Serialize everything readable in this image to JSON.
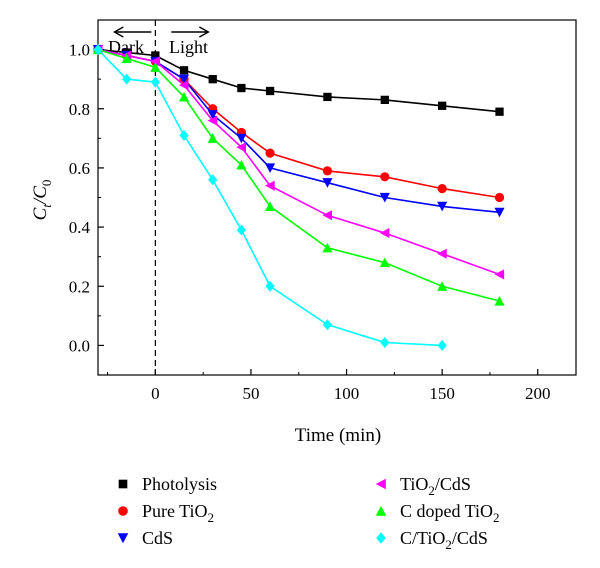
{
  "chart_data": {
    "type": "line",
    "xlabel": "Time (min)",
    "ylabel": {
      "main": "C",
      "sub1": "t",
      "sep": "/C",
      "sub2": "0"
    },
    "xlim": [
      -30,
      220
    ],
    "ylim": [
      -0.1,
      1.1
    ],
    "xticks": [
      0,
      50,
      100,
      150,
      200
    ],
    "yticks": [
      0.0,
      0.2,
      0.4,
      0.6,
      0.8,
      1.0
    ],
    "xtick_labels": [
      "0",
      "50",
      "100",
      "150",
      "200"
    ],
    "ytick_labels": [
      "0.0",
      "0.2",
      "0.4",
      "0.6",
      "0.8",
      "1.0"
    ],
    "grid": false,
    "legend_position": "below",
    "annotations": {
      "dark_label": "Dark",
      "light_label": "Light",
      "divider_x": 0
    },
    "series": [
      {
        "name": "Photolysis",
        "legend_parts": [
          {
            "t": "Photolysis"
          }
        ],
        "color": "#000000",
        "marker": "square",
        "x": [
          -30,
          -15,
          0,
          15,
          30,
          45,
          60,
          90,
          120,
          150,
          180
        ],
        "y": [
          1.0,
          0.99,
          0.98,
          0.93,
          0.9,
          0.87,
          0.86,
          0.84,
          0.83,
          0.81,
          0.79
        ]
      },
      {
        "name": "Pure TiO2",
        "legend_parts": [
          {
            "t": "Pure TiO"
          },
          {
            "t": "2",
            "sub": true
          }
        ],
        "color": "#ff0000",
        "marker": "circle",
        "x": [
          -30,
          -15,
          0,
          15,
          30,
          45,
          60,
          90,
          120,
          150,
          180
        ],
        "y": [
          1.0,
          0.98,
          0.96,
          0.9,
          0.8,
          0.72,
          0.65,
          0.59,
          0.57,
          0.53,
          0.5
        ]
      },
      {
        "name": "CdS",
        "legend_parts": [
          {
            "t": "CdS"
          }
        ],
        "color": "#0000ff",
        "marker": "triangle-down",
        "x": [
          -30,
          -15,
          0,
          15,
          30,
          45,
          60,
          90,
          120,
          150,
          180
        ],
        "y": [
          1.0,
          0.98,
          0.96,
          0.9,
          0.78,
          0.7,
          0.6,
          0.55,
          0.5,
          0.47,
          0.45
        ]
      },
      {
        "name": "TiO2/CdS",
        "legend_parts": [
          {
            "t": "TiO"
          },
          {
            "t": "2",
            "sub": true
          },
          {
            "t": "/CdS"
          }
        ],
        "color": "#ff00ff",
        "marker": "triangle-left",
        "x": [
          -30,
          -15,
          0,
          15,
          30,
          45,
          60,
          90,
          120,
          150,
          180
        ],
        "y": [
          1.0,
          0.98,
          0.96,
          0.88,
          0.76,
          0.67,
          0.54,
          0.44,
          0.38,
          0.31,
          0.24
        ]
      },
      {
        "name": "C doped TiO2",
        "legend_parts": [
          {
            "t": "C doped TiO"
          },
          {
            "t": "2",
            "sub": true
          }
        ],
        "color": "#00ff00",
        "marker": "triangle-up",
        "x": [
          -30,
          -15,
          0,
          15,
          30,
          45,
          60,
          90,
          120,
          150,
          180
        ],
        "y": [
          1.0,
          0.97,
          0.94,
          0.84,
          0.7,
          0.61,
          0.47,
          0.33,
          0.28,
          0.2,
          0.15
        ]
      },
      {
        "name": "C/TiO2/CdS",
        "legend_parts": [
          {
            "t": "C/TiO"
          },
          {
            "t": "2",
            "sub": true
          },
          {
            "t": "/CdS"
          }
        ],
        "color": "#00ffff",
        "marker": "diamond",
        "x": [
          -30,
          -15,
          0,
          15,
          30,
          45,
          60,
          90,
          120,
          150
        ],
        "y": [
          1.0,
          0.9,
          0.89,
          0.71,
          0.56,
          0.39,
          0.2,
          0.07,
          0.01,
          0.0
        ]
      }
    ]
  }
}
